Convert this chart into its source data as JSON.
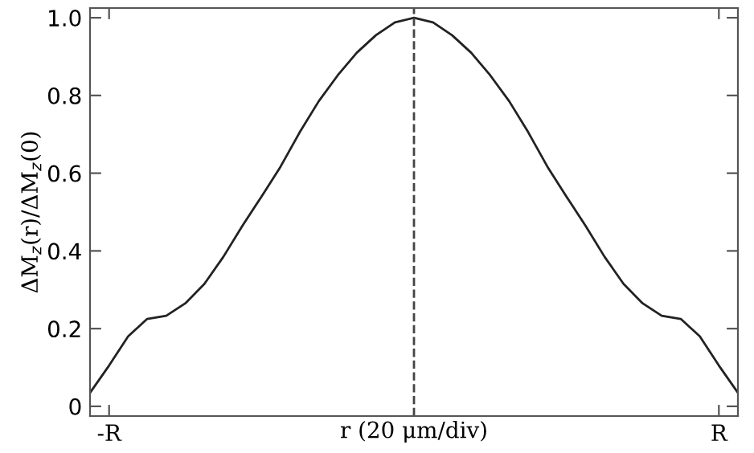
{
  "chart_data": {
    "type": "line",
    "xlabel": "r (20 μm/div)",
    "ylabel": "ΔM$_{z}$(r)/ΔM$_{z}$(0)",
    "categories": [
      null,
      "-R",
      null,
      null,
      null,
      null,
      null,
      null,
      null,
      null,
      null,
      null,
      null,
      null,
      null,
      null,
      null,
      null,
      null,
      null,
      null,
      null,
      null,
      null,
      null,
      null,
      null,
      null,
      null,
      null,
      null,
      null,
      null,
      "R",
      null
    ],
    "series": [
      {
        "color": "#222222",
        "values": [
          0.035,
          0.105,
          0.18,
          0.225,
          0.233,
          0.265,
          0.315,
          0.385,
          0.465,
          0.54,
          0.617,
          0.705,
          0.785,
          0.852,
          0.91,
          0.955,
          0.988,
          1.0,
          0.988,
          0.955,
          0.91,
          0.852,
          0.785,
          0.705,
          0.617,
          0.54,
          0.465,
          0.385,
          0.315,
          0.265,
          0.233,
          0.225,
          0.18,
          0.105,
          0.035
        ]
      }
    ],
    "ylim": [
      -0.025,
      1.025
    ],
    "yticks": [
      0,
      0.2,
      0.4,
      0.6,
      0.8,
      {
        "value": 1,
        "label": "1.0"
      }
    ],
    "marker": "none",
    "line_style": "solid"
  }
}
